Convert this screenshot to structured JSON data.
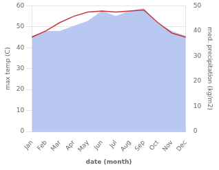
{
  "chart_data": {
    "type": "line",
    "categories": [
      "Jan",
      "Feb",
      "Mar",
      "Apr",
      "May",
      "Jun",
      "Jul",
      "Aug",
      "Sep",
      "Oct",
      "Nov",
      "Dec"
    ],
    "xlabel": "date (month)",
    "ylabel": "max temp (C)",
    "y2label": "med. precipitation (kg/m2)",
    "series": [
      {
        "type": "area",
        "color": "#b8c8f0",
        "axis": "y2",
        "values": [
          38,
          40,
          40,
          42,
          44,
          48,
          46,
          48,
          49,
          43,
          40,
          38
        ]
      },
      {
        "type": "line",
        "color": "#cc3333",
        "values": [
          45,
          48,
          52,
          55,
          57,
          57.5,
          57,
          57.5,
          58,
          52,
          47,
          45
        ]
      }
    ],
    "ylim": [
      0,
      60
    ],
    "yticks": [
      0,
      10,
      20,
      30,
      40,
      50,
      60
    ],
    "y2lim": [
      0,
      50
    ],
    "y2ticks": [
      0,
      10,
      20,
      30,
      40,
      50
    ],
    "grid": true
  }
}
